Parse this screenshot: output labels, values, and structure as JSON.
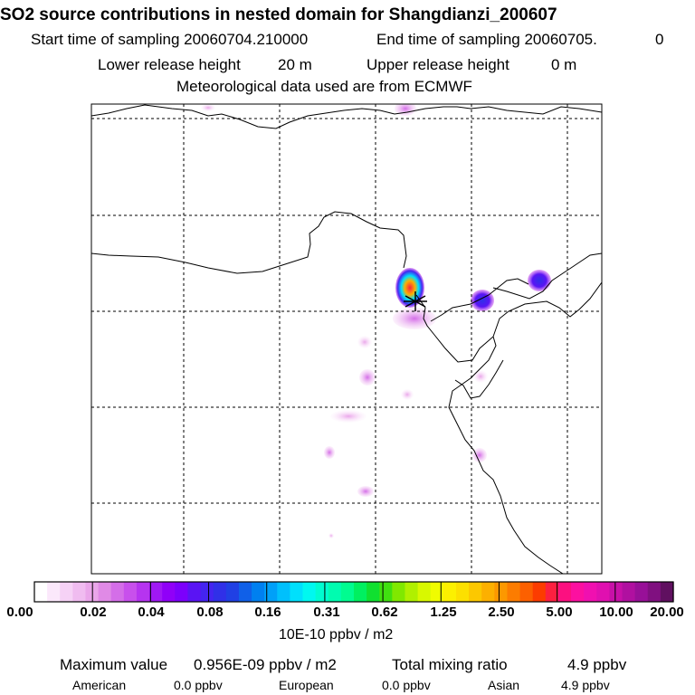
{
  "header": {
    "title": "SO2 source contributions in nested domain for Shangdianzi_200607",
    "start_label": "Start time of sampling 20060704.210000",
    "end_label": "End time of sampling 20060705.",
    "end_suffix": "0",
    "lower_label": "Lower release height",
    "lower_value": "20 m",
    "upper_label": "Upper release height",
    "upper_value": "0 m",
    "met_label": "Meteorological data used are from ECMWF"
  },
  "colorbar": {
    "ticks": [
      "0.00",
      "0.02",
      "0.04",
      "0.08",
      "0.16",
      "0.31",
      "0.62",
      "1.25",
      "2.50",
      "5.00",
      "10.00",
      "20.00"
    ],
    "units": "10E-10 ppbv / m2",
    "colors": [
      "#ffffff",
      "#fbe8fb",
      "#f6d2f6",
      "#f0bcf0",
      "#eaa6ea",
      "#e08ae6",
      "#d46ee8",
      "#c850ec",
      "#b634f0",
      "#a018f4",
      "#9000f8",
      "#7c00fc",
      "#5a14f4",
      "#4424f0",
      "#3030e8",
      "#2040e4",
      "#1060e8",
      "#0080f0",
      "#00a0f8",
      "#00c0fc",
      "#00e0fc",
      "#00f8f0",
      "#00fcd0",
      "#00fcb0",
      "#00fc90",
      "#00f060",
      "#10e030",
      "#40e010",
      "#80e800",
      "#b0f000",
      "#d8f800",
      "#f0fc00",
      "#fcf000",
      "#fce000",
      "#fcc800",
      "#fcb000",
      "#fc9800",
      "#fc7c00",
      "#fc6000",
      "#fc3c00",
      "#fc2040",
      "#fc1080",
      "#fc10a0",
      "#f010b0",
      "#e010b0",
      "#c810a8",
      "#b010a0",
      "#981098",
      "#801080",
      "#601060"
    ]
  },
  "footer": {
    "max_label": "Maximum value",
    "max_value": "0.956E-09 ppbv / m2",
    "total_label": "Total mixing ratio",
    "total_value": "4.9 ppbv",
    "american_label": "American",
    "american_value": "0.0 ppbv",
    "european_label": "European",
    "european_value": "0.0 ppbv",
    "asian_label": "Asian",
    "asian_value": "4.9 ppbv"
  },
  "colors": {
    "grid": "#000000",
    "coast": "#000000"
  }
}
